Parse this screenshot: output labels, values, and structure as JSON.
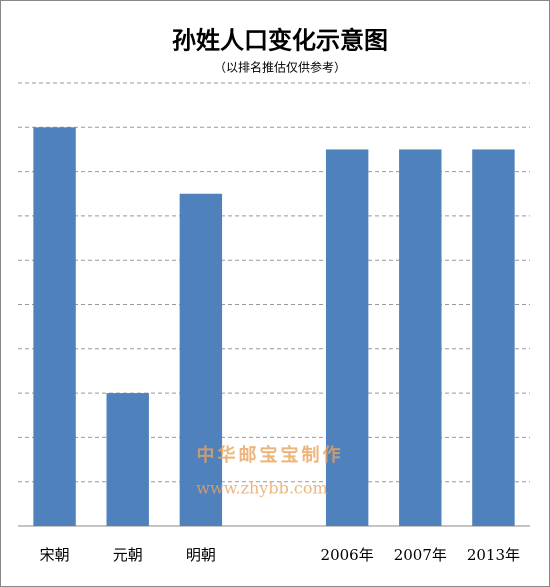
{
  "chart_data": {
    "type": "bar",
    "title": "孙姓人口变化示意图",
    "subtitle": "（以排名推估仅供参考）",
    "categories": [
      "宋朝",
      "元朝",
      "明朝",
      null,
      "2006年",
      "2007年",
      "2013年"
    ],
    "values": [
      9,
      3,
      7.5,
      null,
      8.5,
      8.5,
      8.5
    ],
    "color": "#4f81bd",
    "ylim": [
      0,
      10
    ],
    "yticks": [
      0,
      1,
      2,
      3,
      4,
      5,
      6,
      7,
      8,
      9,
      10
    ],
    "grid": true,
    "watermark": [
      "中华邮宝宝制作",
      "www.zhybb.com"
    ]
  }
}
